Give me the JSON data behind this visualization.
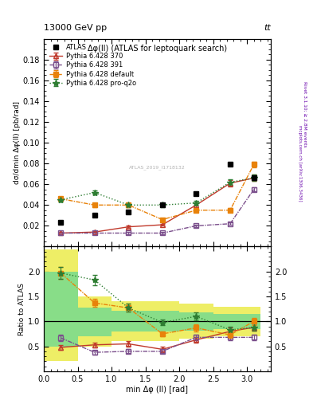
{
  "title_top": "13000 GeV pp",
  "title_right": "tt",
  "plot_title": "Δφ(ll) (ATLAS for leptoquark search)",
  "xlabel": "min Δφ (ll) [rad]",
  "ylabel_main": "dσ/dmin Δφ(ll) [pb/rad]",
  "ylabel_ratio": "Ratio to ATLAS",
  "right_label_top": "Rivet 3.1.10; ≥ 2.8M events",
  "right_label_mid": "mcplots.cern.ch [arXiv:1306.3436]",
  "inspire_label": "ATLAS_2019_I1718132",
  "atlas_x": [
    0.25,
    0.75,
    1.25,
    1.75,
    2.25,
    2.75,
    3.1
  ],
  "atlas_y": [
    0.023,
    0.03,
    0.033,
    0.04,
    0.051,
    0.079,
    0.066
  ],
  "py370_x": [
    0.25,
    0.75,
    1.25,
    1.75,
    2.25,
    2.75,
    3.1
  ],
  "py370_y": [
    0.013,
    0.014,
    0.019,
    0.021,
    0.04,
    0.061,
    0.066
  ],
  "py370_yerr": [
    0.001,
    0.001,
    0.001,
    0.001,
    0.002,
    0.003,
    0.003
  ],
  "py391_x": [
    0.25,
    0.75,
    1.25,
    1.75,
    2.25,
    2.75,
    3.1
  ],
  "py391_y": [
    0.013,
    0.013,
    0.013,
    0.013,
    0.02,
    0.022,
    0.055
  ],
  "py391_yerr": [
    0.001,
    0.001,
    0.001,
    0.001,
    0.001,
    0.001,
    0.002
  ],
  "pydef_x": [
    0.25,
    0.75,
    1.25,
    1.75,
    2.25,
    2.75,
    3.1
  ],
  "pydef_y": [
    0.046,
    0.04,
    0.04,
    0.026,
    0.035,
    0.035,
    0.079
  ],
  "pydef_yerr": [
    0.002,
    0.002,
    0.002,
    0.001,
    0.002,
    0.002,
    0.003
  ],
  "pyq2o_x": [
    0.25,
    0.75,
    1.25,
    1.75,
    2.25,
    2.75,
    3.1
  ],
  "pyq2o_y": [
    0.045,
    0.052,
    0.04,
    0.04,
    0.042,
    0.062,
    0.066
  ],
  "pyq2o_yerr": [
    0.002,
    0.002,
    0.002,
    0.002,
    0.002,
    0.003,
    0.003
  ],
  "ratio_py370_x": [
    0.25,
    0.75,
    1.25,
    1.75,
    2.25,
    2.75,
    3.1
  ],
  "ratio_py370_y": [
    0.48,
    0.53,
    0.55,
    0.44,
    0.63,
    0.8,
    0.88
  ],
  "ratio_py370_yerr": [
    0.05,
    0.05,
    0.05,
    0.05,
    0.06,
    0.07,
    0.07
  ],
  "ratio_py391_x": [
    0.25,
    0.75,
    1.25,
    1.75,
    2.25,
    2.75,
    3.1
  ],
  "ratio_py391_y": [
    0.67,
    0.38,
    0.4,
    0.4,
    0.68,
    0.68,
    0.68
  ],
  "ratio_py391_yerr": [
    0.07,
    0.04,
    0.04,
    0.04,
    0.06,
    0.06,
    0.06
  ],
  "ratio_pydef_x": [
    0.25,
    0.75,
    1.25,
    1.75,
    2.25,
    2.75,
    3.1
  ],
  "ratio_pydef_y": [
    1.97,
    1.37,
    1.27,
    0.75,
    0.87,
    0.73,
    1.0
  ],
  "ratio_pydef_yerr": [
    0.12,
    0.08,
    0.08,
    0.05,
    0.07,
    0.06,
    0.07
  ],
  "ratio_pyq2o_x": [
    0.25,
    0.75,
    1.25,
    1.75,
    2.25,
    2.75,
    3.1
  ],
  "ratio_pyq2o_y": [
    1.97,
    1.83,
    1.27,
    0.98,
    1.1,
    0.83,
    0.88
  ],
  "ratio_pyq2o_yerr": [
    0.12,
    0.1,
    0.08,
    0.06,
    0.08,
    0.06,
    0.07
  ],
  "band_bins": [
    0.0,
    0.5,
    1.0,
    1.5,
    2.0,
    2.5,
    3.2
  ],
  "yellow_lo": [
    0.2,
    0.5,
    0.6,
    0.6,
    0.65,
    0.7
  ],
  "yellow_hi": [
    2.45,
    1.5,
    1.4,
    1.4,
    1.35,
    1.3
  ],
  "green_lo": [
    0.5,
    0.7,
    0.8,
    0.8,
    0.82,
    0.85
  ],
  "green_hi": [
    2.0,
    1.28,
    1.22,
    1.22,
    1.18,
    1.15
  ],
  "color_py370": "#C0392B",
  "color_py391": "#7B4F8C",
  "color_pydef": "#E8820A",
  "color_pyq2o": "#2E7D32",
  "color_atlas": "#000000",
  "color_band_green": "#88DD88",
  "color_band_yellow": "#EEEE66",
  "main_ylim": [
    0.0,
    0.2
  ],
  "main_yticks": [
    0.02,
    0.04,
    0.06,
    0.08,
    0.1,
    0.12,
    0.14,
    0.16,
    0.18
  ],
  "ratio_ylim": [
    0.0,
    2.5
  ],
  "ratio_yticks": [
    0.5,
    1.0,
    1.5,
    2.0
  ],
  "xlim": [
    0.0,
    3.35
  ]
}
